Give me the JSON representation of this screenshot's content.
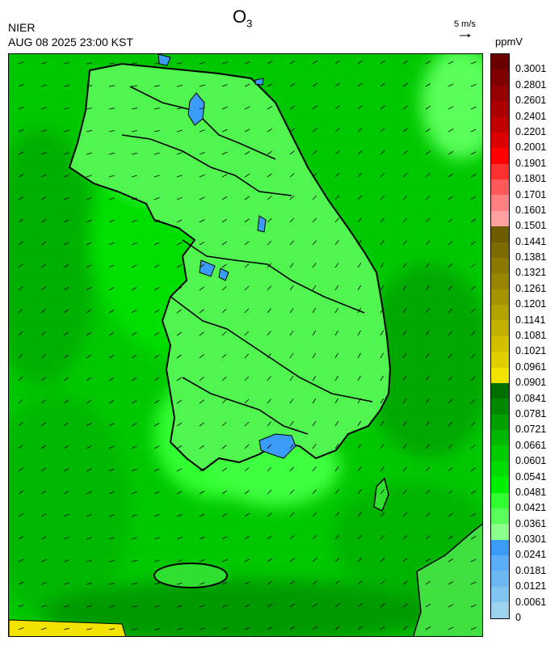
{
  "header": {
    "title_main": "O",
    "title_sub": "3",
    "agency": "NIER",
    "timestamp": "AUG 08 2025 23:00 KST",
    "wind_scale_label": "5 m/s",
    "unit": "ppmV"
  },
  "legend": {
    "labels": [
      "0.3001",
      "0.2801",
      "0.2601",
      "0.2401",
      "0.2201",
      "0.2001",
      "0.1901",
      "0.1801",
      "0.1701",
      "0.1601",
      "0.1501",
      "0.1441",
      "0.1381",
      "0.1321",
      "0.1261",
      "0.1201",
      "0.1141",
      "0.1081",
      "0.1021",
      "0.0961",
      "0.0901",
      "0.0841",
      "0.0781",
      "0.0721",
      "0.0661",
      "0.0601",
      "0.0541",
      "0.0481",
      "0.0421",
      "0.0361",
      "0.0301",
      "0.0241",
      "0.0181",
      "0.0121",
      "0.0061",
      "0"
    ],
    "colors": [
      "#6a0000",
      "#7e0000",
      "#950000",
      "#ab0000",
      "#c20000",
      "#dd0000",
      "#ff0000",
      "#ff3030",
      "#ff5a5a",
      "#ff8080",
      "#ffa0a0",
      "#6d5d00",
      "#7c6b00",
      "#8a7800",
      "#978500",
      "#a59300",
      "#b4a200",
      "#c3b000",
      "#d2bf00",
      "#e0cf00",
      "#f2e400",
      "#006e00",
      "#008800",
      "#00a000",
      "#00b800",
      "#00cc00",
      "#00dd00",
      "#00f000",
      "#30ff30",
      "#5aff5a",
      "#8cff8c",
      "#3a9cf6",
      "#5aaef6",
      "#6db8f3",
      "#80c4f2",
      "#9dd2ee"
    ]
  },
  "map": {
    "background_color": "#00cc00",
    "coast_color": "#000000"
  }
}
